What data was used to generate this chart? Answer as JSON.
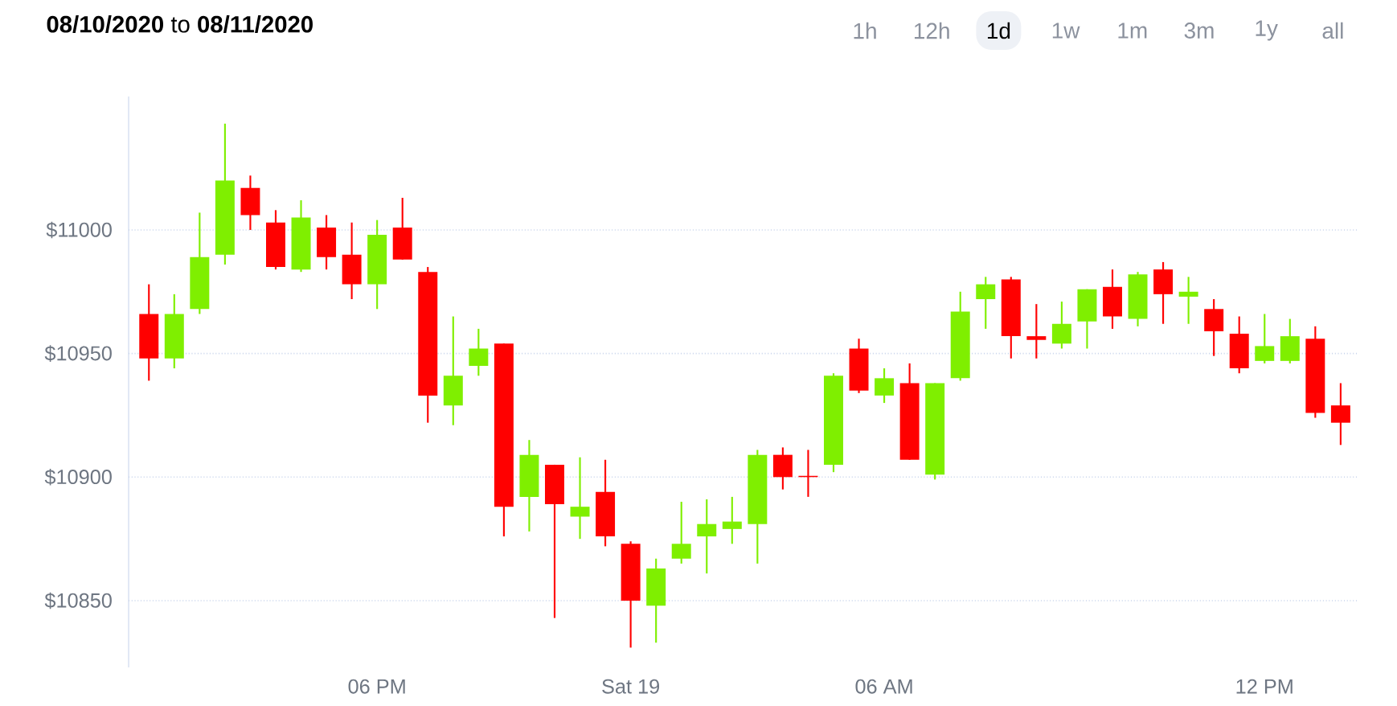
{
  "chart_data": {
    "type": "candlestick",
    "title": "**08/10/2020** to **08/11/2020**",
    "annotations": [
      "1h",
      "12h",
      "1d",
      "1w",
      "1m",
      "3m",
      "1y",
      "all"
    ],
    "categories": [
      null,
      null,
      null,
      null,
      null,
      null,
      null,
      null,
      null,
      "06 PM",
      null,
      null,
      null,
      null,
      null,
      null,
      null,
      null,
      null,
      "Sat 19",
      null,
      null,
      null,
      null,
      null,
      null,
      null,
      null,
      null,
      "06 AM",
      null,
      null,
      null,
      null,
      null,
      null,
      null,
      null,
      null,
      null,
      null,
      null,
      null,
      null,
      "12 PM",
      null,
      null,
      null
    ],
    "ohlc": [
      [
        10966,
        10978,
        10939,
        10948
      ],
      [
        10948,
        10974,
        10944,
        10966
      ],
      [
        10968,
        11007,
        10966,
        10989
      ],
      [
        10990,
        11043,
        10986,
        11020
      ],
      [
        11017,
        11022,
        11000,
        11006
      ],
      [
        11003,
        11008,
        10984,
        10985
      ],
      [
        10984,
        11012,
        10983,
        11005
      ],
      [
        11001,
        11006,
        10984,
        10989
      ],
      [
        10990,
        11003,
        10972,
        10978
      ],
      [
        10978,
        11004,
        10968,
        10998
      ],
      [
        11001,
        11013,
        10988,
        10988
      ],
      [
        10983,
        10985,
        10922,
        10933
      ],
      [
        10929,
        10965,
        10921,
        10941
      ],
      [
        10945,
        10960,
        10941,
        10952
      ],
      [
        10954,
        10954,
        10876,
        10888
      ],
      [
        10892,
        10915,
        10878,
        10909
      ],
      [
        10905,
        10905,
        10843,
        10889
      ],
      [
        10884,
        10908,
        10875,
        10888
      ],
      [
        10894,
        10907,
        10872,
        10876
      ],
      [
        10873,
        10874,
        10831,
        10850
      ],
      [
        10848,
        10867,
        10833,
        10863
      ],
      [
        10867,
        10890,
        10865,
        10873
      ],
      [
        10876,
        10891,
        10861,
        10881
      ],
      [
        10879,
        10892,
        10873,
        10882
      ],
      [
        10881,
        10911,
        10865,
        10909
      ],
      [
        10909,
        10912,
        10895,
        10900
      ],
      [
        10900.5,
        10911,
        10892,
        10900
      ],
      [
        10905,
        10942,
        10902,
        10941
      ],
      [
        10952,
        10956,
        10934,
        10935
      ],
      [
        10933,
        10944,
        10930,
        10940
      ],
      [
        10938,
        10946,
        10907,
        10907
      ],
      [
        10901,
        10938,
        10899,
        10938
      ],
      [
        10940,
        10975,
        10939,
        10967
      ],
      [
        10972,
        10981,
        10960,
        10978
      ],
      [
        10980,
        10981,
        10948,
        10957
      ],
      [
        10957,
        10970,
        10948,
        10955.5
      ],
      [
        10954,
        10971,
        10952,
        10962
      ],
      [
        10963,
        10976,
        10952,
        10976
      ],
      [
        10977,
        10984,
        10960,
        10965
      ],
      [
        10964,
        10983,
        10961,
        10982
      ],
      [
        10984,
        10987,
        10962,
        10974
      ],
      [
        10973,
        10981,
        10962,
        10975
      ],
      [
        10968,
        10972,
        10949,
        10959
      ],
      [
        10958,
        10965,
        10942,
        10944
      ],
      [
        10947,
        10966,
        10946,
        10953
      ],
      [
        10947,
        10964,
        10946,
        10957
      ],
      [
        10956,
        10961,
        10924,
        10926
      ],
      [
        10929,
        10938,
        10913,
        10922
      ]
    ],
    "colors": [
      "#ff0000",
      "#7fef00",
      "#7fef00",
      "#7fef00",
      "#ff0000",
      "#ff0000",
      "#7fef00",
      "#ff0000",
      "#ff0000",
      "#7fef00",
      "#ff0000",
      "#ff0000",
      "#7fef00",
      "#7fef00",
      "#ff0000",
      "#7fef00",
      "#ff0000",
      "#7fef00",
      "#ff0000",
      "#ff0000",
      "#7fef00",
      "#7fef00",
      "#7fef00",
      "#7fef00",
      "#7fef00",
      "#ff0000",
      "#ff0000",
      "#7fef00",
      "#ff0000",
      "#7fef00",
      "#ff0000",
      "#7fef00",
      "#7fef00",
      "#7fef00",
      "#ff0000",
      "#ff0000",
      "#7fef00",
      "#7fef00",
      "#ff0000",
      "#7fef00",
      "#ff0000",
      "#7fef00",
      "#ff0000",
      "#ff0000",
      "#7fef00",
      "#7fef00",
      "#ff0000",
      "#ff0000"
    ],
    "ylim": [
      10823,
      11054
    ],
    "yticks": [
      {
        "value": 10850,
        "label": "$10850"
      },
      {
        "value": 10900,
        "label": "$10900"
      },
      {
        "value": 10950,
        "label": "$10950"
      },
      {
        "value": 11000,
        "label": "$11000"
      }
    ],
    "grid": "y"
  }
}
